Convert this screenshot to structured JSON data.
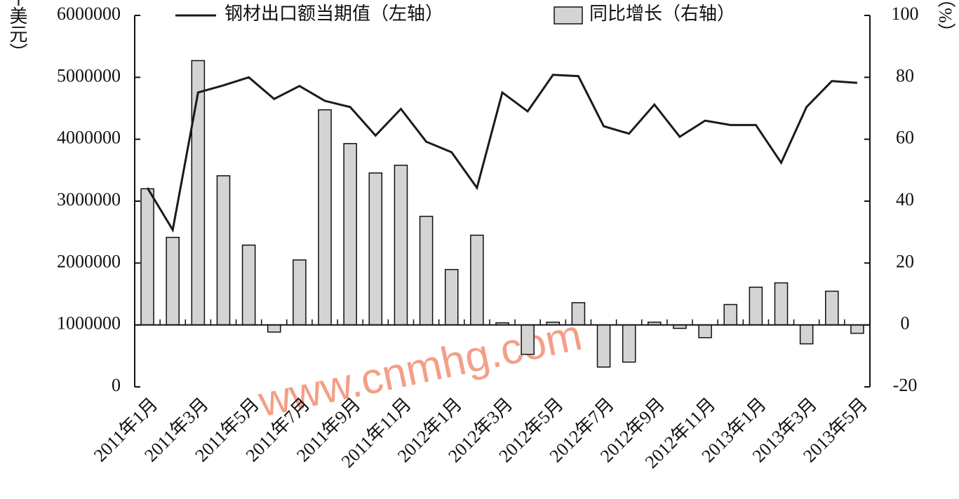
{
  "chart_data": {
    "type": "bar_line",
    "categories": [
      "2011年1月",
      null,
      "2011年3月",
      null,
      "2011年5月",
      null,
      "2011年7月",
      null,
      "2011年9月",
      null,
      "2011年11月",
      null,
      "2012年1月",
      null,
      "2012年3月",
      null,
      "2012年5月",
      null,
      "2012年7月",
      null,
      "2012年9月",
      null,
      "2012年11月",
      null,
      "2013年1月",
      null,
      "2013年3月",
      null,
      "2013年5月"
    ],
    "series": [
      {
        "name": "钢材出口额当期值（左轴）",
        "type": "line",
        "axis": "y",
        "color": "#1a1a1a",
        "values": [
          3215000,
          2536000,
          4755000,
          4870000,
          5000000,
          4650000,
          4860000,
          4620000,
          4520000,
          4060000,
          4490000,
          3960000,
          3790000,
          3215000,
          4755000,
          4450000,
          5040000,
          5020000,
          4210000,
          4090000,
          4560000,
          4040000,
          4300000,
          4230000,
          4230000,
          3620000,
          4520000,
          4940000,
          4910000
        ]
      },
      {
        "name": "同比增长（右轴）",
        "type": "bar",
        "axis": "y2",
        "color": "#d4d4d4",
        "values": [
          44,
          28.3,
          85.4,
          48.2,
          25.8,
          -2.3,
          21,
          69.5,
          58.6,
          49.1,
          51.6,
          35.1,
          17.9,
          29,
          0.7,
          -9.5,
          0.9,
          7.2,
          -13.6,
          -12,
          0.9,
          -1.1,
          -4.1,
          6.6,
          12.2,
          13.6,
          -6.1,
          10.9,
          -2.7
        ]
      }
    ],
    "y_label": "（千美元）",
    "y2_label": "（%）",
    "ylim": [
      0,
      6000000
    ],
    "yticks": [
      0,
      1000000,
      2000000,
      3000000,
      4000000,
      5000000,
      6000000
    ],
    "y2lim": [
      -20,
      100
    ],
    "y2ticks": [
      -20,
      0,
      20,
      40,
      60,
      80,
      100
    ],
    "watermark": "www.cnmhg.com"
  }
}
